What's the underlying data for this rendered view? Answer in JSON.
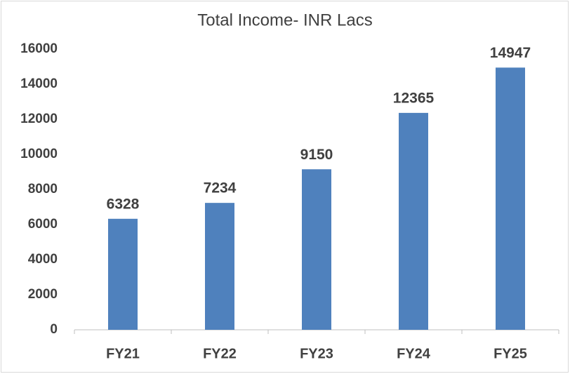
{
  "chart_data": {
    "type": "bar",
    "title": "Total Income- INR Lacs",
    "categories": [
      "FY21",
      "FY22",
      "FY23",
      "FY24",
      "FY25"
    ],
    "values": [
      6328,
      7234,
      9150,
      12365,
      14947
    ],
    "color": "#4f81bd",
    "ylim": [
      0,
      16000
    ],
    "yticks": [
      0,
      2000,
      4000,
      6000,
      8000,
      10000,
      12000,
      14000,
      16000
    ],
    "grid": false
  }
}
